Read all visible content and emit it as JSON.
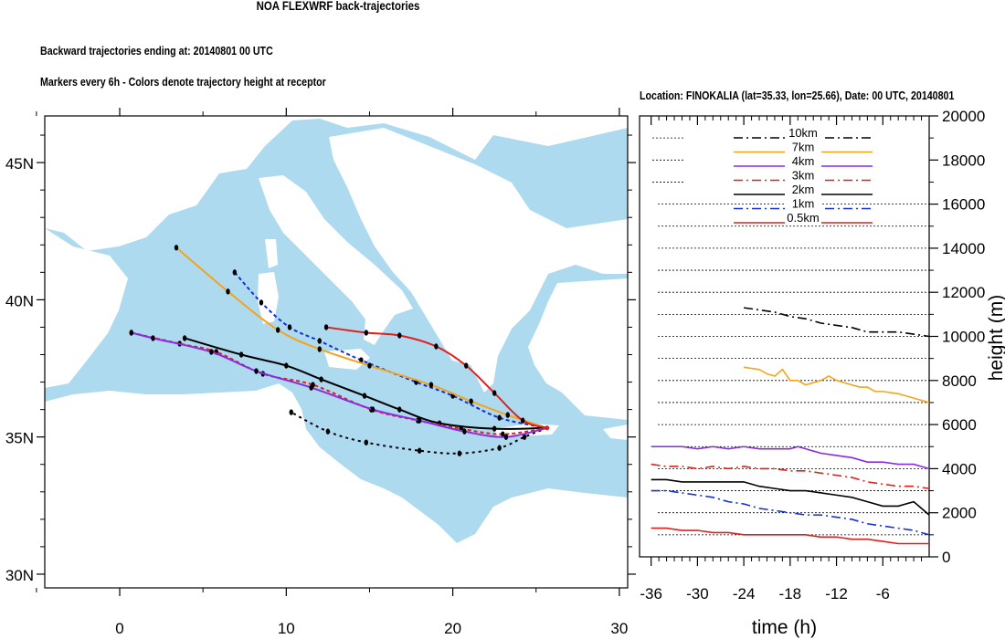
{
  "header": {
    "title": "NOA FLEXWRF back-trajectories",
    "line1": "Backward trajectories ending at: 20140801  00 UTC",
    "line2": "Markers every 6h - Colors denote trajectory height at receptor",
    "line3": "Location: FINOKALIA (lat=35.33,  lon=25.66), Date: 00 UTC, 20140801"
  },
  "colors": {
    "sea": "#aedaf0",
    "land": "#ffffff",
    "10km": "#000000",
    "7km": "#f3a41c",
    "4km": "#8a2be2",
    "3km": "#e0201c",
    "2km": "#000000",
    "1km": "#1530d8",
    "0.5km": "#e0201c"
  },
  "chart_data": [
    {
      "type": "map-trajectory",
      "x_ticks": [
        "0",
        "10",
        "20",
        "30"
      ],
      "y_ticks": [
        "45N",
        "40N",
        "35N",
        "30N"
      ],
      "xlim": [
        -4.5,
        30.5
      ],
      "ylim": [
        29.5,
        46.7
      ],
      "receptor": {
        "lon": 25.66,
        "lat": 35.33
      },
      "trajectories": [
        {
          "level": "7km",
          "style": "solid",
          "points": [
            [
              25.66,
              35.33
            ],
            [
              23.3,
              35.8
            ],
            [
              21.1,
              36.3
            ],
            [
              18.7,
              36.9
            ],
            [
              15.0,
              37.6
            ],
            [
              12.0,
              38.2
            ],
            [
              9.5,
              38.9
            ],
            [
              6.5,
              40.3
            ],
            [
              3.4,
              41.9
            ]
          ]
        },
        {
          "level": "4km",
          "style": "solid",
          "points": [
            [
              25.66,
              35.33
            ],
            [
              23.2,
              35.0
            ],
            [
              20.7,
              35.2
            ],
            [
              18.0,
              35.6
            ],
            [
              15.2,
              36.0
            ],
            [
              11.5,
              36.8
            ],
            [
              8.2,
              37.4
            ],
            [
              5.5,
              38.1
            ],
            [
              2.0,
              38.6
            ],
            [
              0.7,
              38.8
            ]
          ]
        },
        {
          "level": "3km",
          "style": "dashed",
          "points": [
            [
              25.66,
              35.33
            ],
            [
              23.0,
              35.1
            ],
            [
              20.5,
              35.3
            ],
            [
              17.9,
              35.6
            ],
            [
              15.1,
              36.0
            ],
            [
              11.6,
              36.9
            ],
            [
              8.6,
              37.3
            ],
            [
              5.8,
              38.1
            ],
            [
              3.6,
              38.4
            ],
            [
              0.7,
              38.8
            ]
          ]
        },
        {
          "level": "2km",
          "style": "solid",
          "points": [
            [
              25.66,
              35.33
            ],
            [
              22.5,
              35.3
            ],
            [
              19.2,
              35.5
            ],
            [
              16.8,
              36.0
            ],
            [
              14.7,
              36.5
            ],
            [
              12.1,
              37.1
            ],
            [
              10.0,
              37.6
            ],
            [
              7.3,
              38.0
            ],
            [
              3.9,
              38.6
            ]
          ]
        },
        {
          "level": "1km",
          "style": "dashed",
          "points": [
            [
              25.66,
              35.33
            ],
            [
              22.8,
              35.7
            ],
            [
              20.0,
              36.5
            ],
            [
              17.8,
              37.0
            ],
            [
              14.5,
              37.8
            ],
            [
              12.0,
              38.5
            ],
            [
              10.2,
              39.0
            ],
            [
              8.5,
              39.9
            ],
            [
              6.9,
              41.0
            ]
          ]
        },
        {
          "level": "0.5km",
          "style": "solid",
          "points": [
            [
              25.66,
              35.33
            ],
            [
              24.2,
              35.6
            ],
            [
              22.5,
              36.6
            ],
            [
              20.8,
              37.6
            ],
            [
              19.0,
              38.3
            ],
            [
              16.8,
              38.7
            ],
            [
              14.8,
              38.8
            ],
            [
              12.4,
              39.0
            ]
          ]
        },
        {
          "level": "10km",
          "style": "dotted",
          "points": [
            [
              25.66,
              35.33
            ],
            [
              24.3,
              35.0
            ],
            [
              22.8,
              34.6
            ],
            [
              20.4,
              34.4
            ],
            [
              18.0,
              34.5
            ],
            [
              14.8,
              34.8
            ],
            [
              12.5,
              35.2
            ],
            [
              10.3,
              35.9
            ]
          ]
        }
      ]
    },
    {
      "type": "line",
      "xlabel": "time (h)",
      "ylabel": "height (m)",
      "x_ticks": [
        "-36",
        "-30",
        "-24",
        "-18",
        "-12",
        "-6"
      ],
      "y_ticks": [
        "0",
        "2000",
        "4000",
        "6000",
        "8000",
        "10000",
        "12000",
        "14000",
        "16000",
        "18000",
        "20000"
      ],
      "xlim": [
        -37.5,
        0
      ],
      "ylim": [
        0,
        20000
      ],
      "legend_position": "top",
      "series": [
        {
          "name": "10km",
          "style": "dashdot",
          "x": [
            -24,
            -22,
            -20,
            -18,
            -16,
            -14,
            -12,
            -10,
            -8,
            -6,
            -4,
            -2,
            0
          ],
          "y": [
            11300,
            11200,
            11100,
            10900,
            10800,
            10600,
            10500,
            10400,
            10200,
            10200,
            10200,
            10100,
            10000
          ]
        },
        {
          "name": "7km",
          "style": "solid",
          "x": [
            -24,
            -22,
            -21,
            -20,
            -19,
            -18,
            -17,
            -16,
            -15,
            -14,
            -13,
            -12,
            -11,
            -10,
            -9,
            -8,
            -7,
            -6,
            -4,
            -2,
            0
          ],
          "y": [
            8600,
            8500,
            8300,
            8200,
            8500,
            8000,
            8000,
            7800,
            7900,
            8000,
            8200,
            8000,
            7900,
            7800,
            7700,
            7700,
            7500,
            7500,
            7400,
            7200,
            7000
          ]
        },
        {
          "name": "4km",
          "style": "solid",
          "x": [
            -36,
            -34,
            -32,
            -30,
            -28,
            -26,
            -24,
            -22,
            -20,
            -18,
            -17,
            -16,
            -14,
            -12,
            -10,
            -8,
            -6,
            -4,
            -2,
            -1,
            0
          ],
          "y": [
            5000,
            5000,
            5000,
            4900,
            5000,
            4900,
            5000,
            4900,
            4900,
            4900,
            5000,
            4900,
            4700,
            4600,
            4500,
            4300,
            4300,
            4200,
            4200,
            4100,
            4000
          ]
        },
        {
          "name": "3km",
          "style": "dashdot",
          "x": [
            -36,
            -34,
            -32,
            -30,
            -28,
            -26,
            -24,
            -22,
            -20,
            -18,
            -16,
            -14,
            -12,
            -10,
            -8,
            -6,
            -4,
            -2,
            0
          ],
          "y": [
            4200,
            4100,
            4100,
            4000,
            4100,
            4000,
            4100,
            4000,
            4000,
            3900,
            3900,
            3800,
            3700,
            3600,
            3400,
            3300,
            3200,
            3200,
            3100
          ]
        },
        {
          "name": "2km",
          "style": "solid",
          "x": [
            -36,
            -34,
            -32,
            -30,
            -28,
            -26,
            -24,
            -22,
            -20,
            -18,
            -16,
            -14,
            -12,
            -10,
            -8,
            -6,
            -4,
            -2,
            -1,
            0
          ],
          "y": [
            3500,
            3500,
            3400,
            3400,
            3400,
            3400,
            3400,
            3200,
            3100,
            3000,
            3000,
            2900,
            2800,
            2700,
            2500,
            2300,
            2300,
            2500,
            2200,
            1900
          ]
        },
        {
          "name": "1km",
          "style": "dashdot",
          "x": [
            -36,
            -34,
            -32,
            -30,
            -28,
            -26,
            -24,
            -22,
            -20,
            -18,
            -16,
            -14,
            -12,
            -10,
            -8,
            -6,
            -4,
            -2,
            0
          ],
          "y": [
            3000,
            3000,
            2900,
            2800,
            2700,
            2500,
            2400,
            2200,
            2100,
            2000,
            1900,
            1900,
            1800,
            1700,
            1500,
            1400,
            1300,
            1200,
            1000
          ]
        },
        {
          "name": "0.5km",
          "style": "solid",
          "x": [
            -36,
            -34,
            -32,
            -30,
            -28,
            -26,
            -24,
            -22,
            -20,
            -18,
            -16,
            -14,
            -12,
            -10,
            -8,
            -6,
            -4,
            -2,
            0
          ],
          "y": [
            1300,
            1300,
            1200,
            1200,
            1100,
            1100,
            1000,
            1000,
            1000,
            1000,
            1000,
            900,
            900,
            800,
            800,
            700,
            600,
            600,
            600
          ]
        }
      ]
    }
  ]
}
